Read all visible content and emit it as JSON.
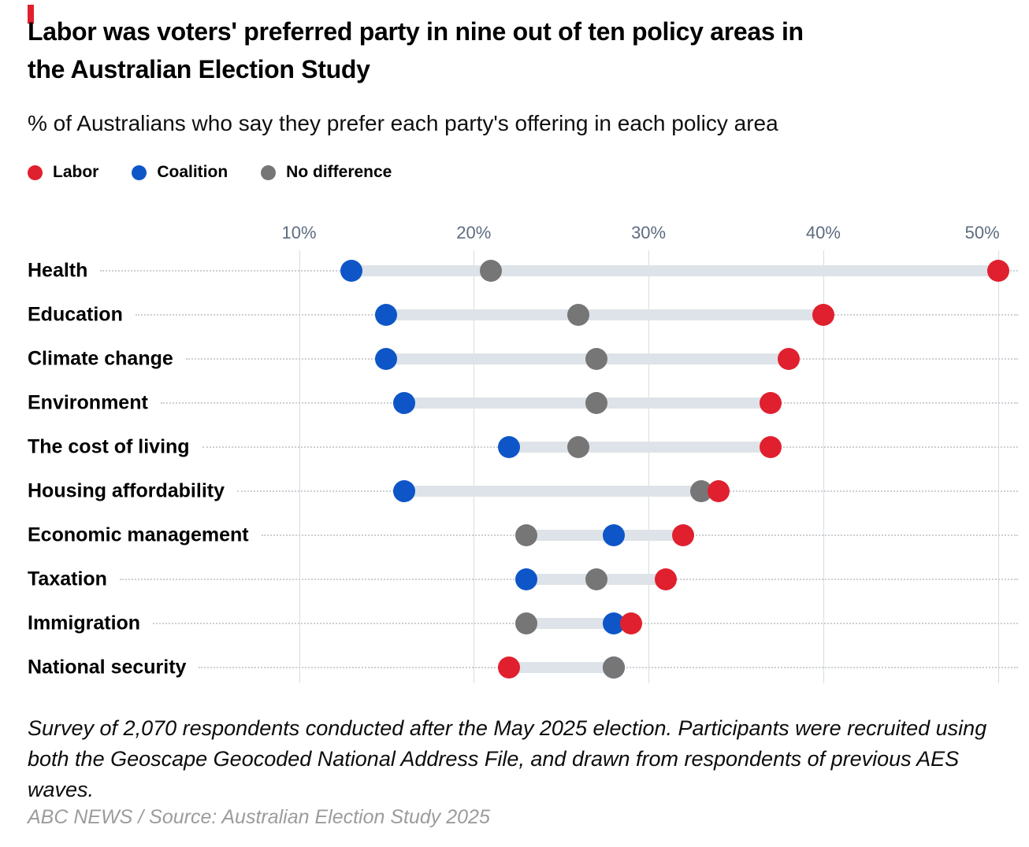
{
  "header": {
    "title": "Labor was voters' preferred party in nine out of ten policy areas in\nthe Australian Election Study",
    "subtitle": "% of Australians who say they prefer each party's offering in each policy area"
  },
  "brand": {
    "accent_color": "#E0202E"
  },
  "chart_data": {
    "type": "dumbbell",
    "title": "Labor was voters' preferred party in nine out of ten policy areas in the Australian Election Study",
    "subtitle": "% of Australians who say they prefer each party's offering in each policy area",
    "categories": [
      "Health",
      "Education",
      "Climate change",
      "Environment",
      "The cost of living",
      "Housing affordability",
      "Economic management",
      "Taxation",
      "Immigration",
      "National security"
    ],
    "series": [
      {
        "name": "Labor",
        "color": "#E0202E",
        "values": [
          50,
          40,
          38,
          37,
          37,
          34,
          32,
          31,
          29,
          22
        ]
      },
      {
        "name": "Coalition",
        "color": "#0E56C8",
        "values": [
          13,
          15,
          15,
          16,
          22,
          16,
          28,
          23,
          28,
          28
        ]
      },
      {
        "name": "No difference",
        "color": "#767676",
        "values": [
          21,
          26,
          27,
          27,
          26,
          33,
          23,
          27,
          23,
          28
        ]
      }
    ],
    "axis": {
      "ticks": [
        "10%",
        "20%",
        "30%",
        "40%",
        "50%"
      ],
      "tick_values": [
        10,
        20,
        30,
        40,
        50
      ],
      "xlim": [
        10,
        51
      ],
      "grid": "vertical",
      "unit": "%"
    },
    "legend_position": "top"
  },
  "footer": {
    "note": "Survey of 2,070 respondents conducted after the May 2025 election. Participants were recruited using both the Geoscape Geocoded National Address File, and drawn from respondents of previous AES waves.",
    "credit": "ABC NEWS / Source: Australian Election Study 2025"
  }
}
